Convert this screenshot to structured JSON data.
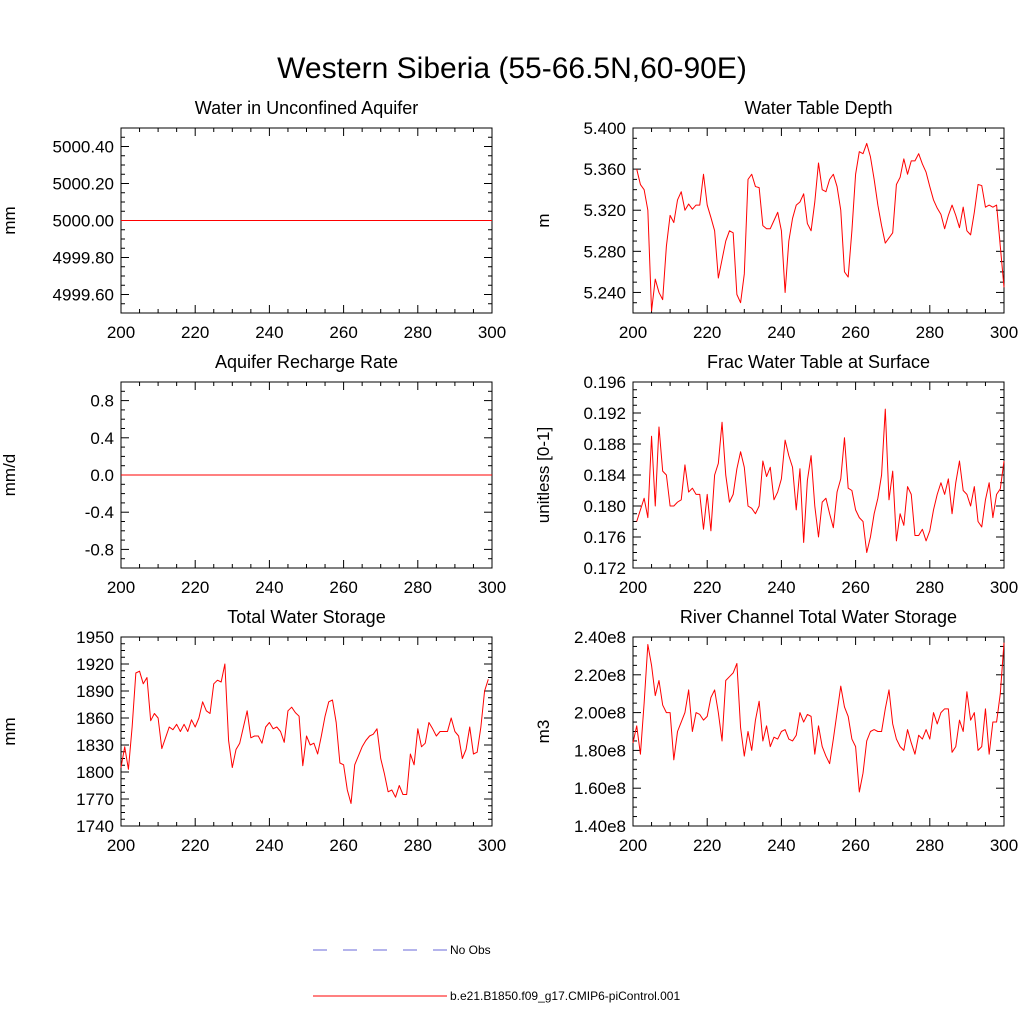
{
  "title": "Western Siberia (55-66.5N,60-90E)",
  "colors": {
    "model": "#ff0000",
    "obs": "#6a6ad8",
    "frame": "#000000"
  },
  "legend": [
    {
      "label": "No Obs",
      "style": "dashed",
      "color": "#6a6ad8"
    },
    {
      "label": "b.e21.B1850.f09_g17.CMIP6-piControl.001",
      "style": "solid",
      "color": "#ff0000"
    }
  ],
  "chart_data": [
    {
      "type": "line",
      "title": "Water in Unconfined Aquifer",
      "ylabel": "mm",
      "xlim": [
        200,
        300
      ],
      "ylim": [
        4999.5,
        5000.5
      ],
      "xticks": [
        200,
        220,
        240,
        260,
        280,
        300
      ],
      "yticks": [
        4999.6,
        4999.8,
        5000.0,
        5000.2,
        5000.4
      ],
      "ytick_labels": [
        "4999.60",
        "4999.80",
        "5000.00",
        "5000.20",
        "5000.40"
      ],
      "x_start": 200,
      "x_end": 300,
      "series": [
        {
          "name": "b.e21.B1850.f09_g17.CMIP6-piControl.001",
          "constant": 5000.0
        }
      ]
    },
    {
      "type": "line",
      "title": "Water Table Depth",
      "ylabel": "m",
      "xlim": [
        200,
        300
      ],
      "ylim": [
        5.22,
        5.4
      ],
      "xticks": [
        200,
        220,
        240,
        260,
        280,
        300
      ],
      "yticks": [
        5.24,
        5.28,
        5.32,
        5.36,
        5.4
      ],
      "ytick_labels": [
        "5.240",
        "5.280",
        "5.320",
        "5.360",
        "5.400"
      ],
      "x_start": 201,
      "series": [
        {
          "name": "b.e21.B1850.f09_g17.CMIP6-piControl.001",
          "values": [
            5.36,
            5.345,
            5.34,
            5.32,
            5.222,
            5.253,
            5.24,
            5.233,
            5.285,
            5.315,
            5.308,
            5.33,
            5.338,
            5.32,
            5.326,
            5.321,
            5.325,
            5.325,
            5.355,
            5.325,
            5.313,
            5.3,
            5.254,
            5.272,
            5.29,
            5.3,
            5.298,
            5.238,
            5.23,
            5.258,
            5.35,
            5.355,
            5.343,
            5.342,
            5.305,
            5.302,
            5.302,
            5.31,
            5.318,
            5.3,
            5.24,
            5.29,
            5.312,
            5.325,
            5.328,
            5.336,
            5.307,
            5.3,
            5.328,
            5.366,
            5.34,
            5.338,
            5.35,
            5.355,
            5.343,
            5.32,
            5.26,
            5.255,
            5.3,
            5.355,
            5.377,
            5.375,
            5.385,
            5.372,
            5.35,
            5.325,
            5.305,
            5.288,
            5.293,
            5.298,
            5.345,
            5.352,
            5.37,
            5.355,
            5.368,
            5.368,
            5.375,
            5.365,
            5.357,
            5.343,
            5.33,
            5.322,
            5.316,
            5.302,
            5.315,
            5.325,
            5.315,
            5.303,
            5.323,
            5.3,
            5.296,
            5.318,
            5.345,
            5.344,
            5.323,
            5.325,
            5.323,
            5.325,
            5.285,
            5.245
          ]
        }
      ]
    },
    {
      "type": "line",
      "title": "Aquifer Recharge Rate",
      "ylabel": "mm/d",
      "xlim": [
        200,
        300
      ],
      "ylim": [
        -1.0,
        1.0
      ],
      "xticks": [
        200,
        220,
        240,
        260,
        280,
        300
      ],
      "yticks": [
        -0.8,
        -0.4,
        0.0,
        0.4,
        0.8
      ],
      "ytick_labels": [
        "-0.8",
        "-0.4",
        "0.0",
        "0.4",
        "0.8"
      ],
      "x_start": 200,
      "x_end": 300,
      "series": [
        {
          "name": "b.e21.B1850.f09_g17.CMIP6-piControl.001",
          "constant": 0.0
        }
      ]
    },
    {
      "type": "line",
      "title": "Frac Water Table at Surface",
      "ylabel": "unitless [0-1]",
      "xlim": [
        200,
        300
      ],
      "ylim": [
        0.172,
        0.196
      ],
      "xticks": [
        200,
        220,
        240,
        260,
        280,
        300
      ],
      "yticks": [
        0.172,
        0.176,
        0.18,
        0.184,
        0.188,
        0.192,
        0.196
      ],
      "ytick_labels": [
        "0.172",
        "0.176",
        "0.180",
        "0.184",
        "0.188",
        "0.192",
        "0.196"
      ],
      "x_start": 201,
      "series": [
        {
          "name": "b.e21.B1850.f09_g17.CMIP6-piControl.001",
          "values": [
            0.178,
            0.1795,
            0.181,
            0.1785,
            0.189,
            0.18,
            0.1902,
            0.1845,
            0.184,
            0.18,
            0.18,
            0.1805,
            0.1808,
            0.1853,
            0.1818,
            0.1823,
            0.1815,
            0.1815,
            0.177,
            0.1815,
            0.1768,
            0.184,
            0.1855,
            0.1908,
            0.184,
            0.1805,
            0.1815,
            0.1848,
            0.187,
            0.185,
            0.18,
            0.1797,
            0.179,
            0.18,
            0.1858,
            0.1838,
            0.185,
            0.1808,
            0.1818,
            0.1835,
            0.1885,
            0.1865,
            0.185,
            0.1795,
            0.1848,
            0.1753,
            0.1833,
            0.1865,
            0.18,
            0.176,
            0.1805,
            0.181,
            0.179,
            0.1772,
            0.1818,
            0.1835,
            0.1888,
            0.1823,
            0.182,
            0.1795,
            0.1785,
            0.178,
            0.174,
            0.176,
            0.179,
            0.181,
            0.184,
            0.1925,
            0.1808,
            0.1845,
            0.1755,
            0.179,
            0.1775,
            0.1825,
            0.1815,
            0.1762,
            0.1762,
            0.177,
            0.1755,
            0.1768,
            0.1795,
            0.1815,
            0.183,
            0.1815,
            0.1835,
            0.179,
            0.183,
            0.1858,
            0.182,
            0.1815,
            0.18,
            0.1825,
            0.178,
            0.1773,
            0.1808,
            0.183,
            0.1785,
            0.1815,
            0.1822,
            0.1858
          ]
        }
      ]
    },
    {
      "type": "line",
      "title": "Total Water Storage",
      "ylabel": "mm",
      "xlim": [
        200,
        300
      ],
      "ylim": [
        1740,
        1950
      ],
      "xticks": [
        200,
        220,
        240,
        260,
        280,
        300
      ],
      "yticks": [
        1740,
        1770,
        1800,
        1830,
        1860,
        1890,
        1920,
        1950
      ],
      "ytick_labels": [
        "1740",
        "1770",
        "1800",
        "1830",
        "1860",
        "1890",
        "1920",
        "1950"
      ],
      "x_start": 200,
      "series": [
        {
          "name": "b.e21.B1850.f09_g17.CMIP6-piControl.001",
          "values": [
            1805,
            1828,
            1803,
            1850,
            1910,
            1912,
            1898,
            1905,
            1857,
            1865,
            1860,
            1826,
            1838,
            1850,
            1847,
            1853,
            1845,
            1853,
            1845,
            1858,
            1850,
            1860,
            1878,
            1868,
            1865,
            1898,
            1902,
            1900,
            1920,
            1835,
            1805,
            1825,
            1832,
            1850,
            1868,
            1838,
            1840,
            1840,
            1832,
            1850,
            1855,
            1848,
            1850,
            1845,
            1833,
            1868,
            1872,
            1866,
            1862,
            1807,
            1840,
            1830,
            1832,
            1820,
            1840,
            1862,
            1878,
            1880,
            1855,
            1810,
            1808,
            1780,
            1765,
            1808,
            1818,
            1828,
            1835,
            1840,
            1842,
            1848,
            1815,
            1798,
            1778,
            1780,
            1772,
            1785,
            1775,
            1775,
            1820,
            1808,
            1848,
            1828,
            1832,
            1855,
            1848,
            1840,
            1845,
            1845,
            1845,
            1860,
            1845,
            1840,
            1815,
            1825,
            1850,
            1820,
            1822,
            1850,
            1890,
            1903
          ]
        }
      ]
    },
    {
      "type": "line",
      "title": "River Channel Total Water Storage",
      "ylabel": "m3",
      "xlim": [
        200,
        300
      ],
      "ylim": [
        140000000,
        240000000
      ],
      "xticks": [
        200,
        220,
        240,
        260,
        280,
        300
      ],
      "yticks": [
        140000000,
        160000000,
        180000000,
        200000000,
        220000000,
        240000000
      ],
      "ytick_labels": [
        "1.40e8",
        "1.60e8",
        "1.80e8",
        "2.00e8",
        "2.20e8",
        "2.40e8"
      ],
      "x_start": 200,
      "series": [
        {
          "name": "b.e21.B1850.f09_g17.CMIP6-piControl.001",
          "values": [
            184000000,
            193000000,
            178000000,
            205000000,
            236000000,
            225000000,
            209000000,
            217000000,
            204000000,
            200000000,
            200000000,
            175000000,
            190000000,
            195000000,
            200000000,
            212000000,
            190000000,
            200000000,
            199000000,
            196000000,
            198000000,
            208000000,
            212000000,
            200000000,
            185000000,
            217000000,
            219000000,
            221000000,
            226000000,
            192000000,
            177000000,
            190000000,
            180000000,
            196000000,
            206000000,
            185000000,
            193000000,
            182000000,
            187000000,
            186000000,
            190000000,
            191000000,
            186000000,
            185000000,
            188000000,
            200000000,
            195000000,
            199000000,
            198000000,
            178000000,
            193000000,
            182000000,
            177000000,
            173000000,
            186000000,
            200000000,
            214000000,
            203000000,
            198000000,
            186000000,
            182000000,
            158000000,
            168000000,
            185000000,
            190000000,
            191000000,
            190000000,
            190000000,
            202000000,
            212000000,
            194000000,
            186000000,
            182000000,
            180000000,
            191000000,
            184000000,
            178000000,
            188000000,
            186000000,
            191000000,
            186000000,
            200000000,
            194000000,
            200000000,
            202000000,
            202000000,
            179000000,
            182000000,
            196000000,
            190000000,
            211000000,
            196000000,
            200000000,
            180000000,
            182000000,
            202000000,
            178000000,
            195000000,
            195000000,
            210000000,
            237000000
          ]
        }
      ]
    }
  ]
}
